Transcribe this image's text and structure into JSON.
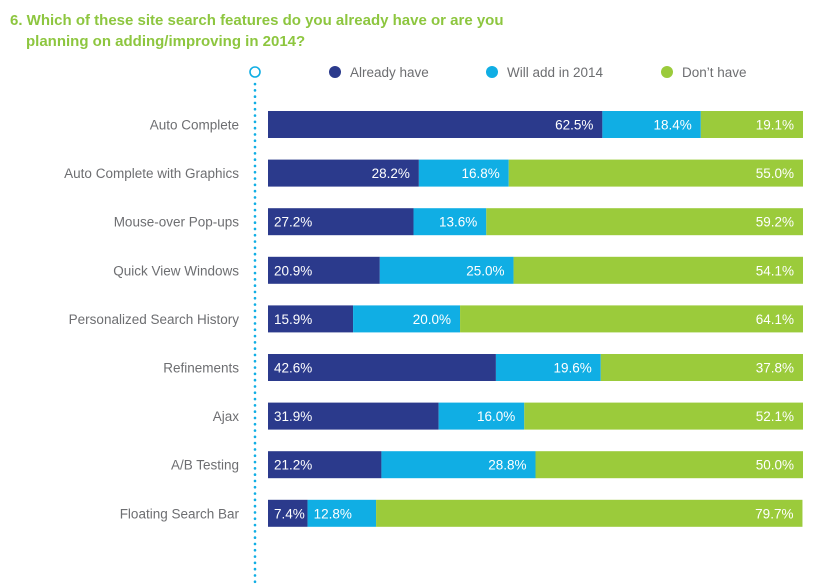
{
  "chart_data": {
    "type": "bar",
    "orientation": "horizontal",
    "stacked": true,
    "title_line1": "6. Which of these site search features do you already have or are you",
    "title_line2": "planning on adding/improving in 2014?",
    "categories": [
      "Auto Complete",
      "Auto Complete with Graphics",
      "Mouse-over Pop-ups",
      "Quick View Windows",
      "Personalized Search History",
      "Refinements",
      "Ajax",
      "A/B Testing",
      "Floating Search Bar"
    ],
    "series": [
      {
        "name": "Already have",
        "color": "#2b3a8c",
        "values": [
          62.5,
          28.2,
          27.2,
          20.9,
          15.9,
          42.6,
          31.9,
          21.2,
          7.4
        ],
        "labels": [
          "62.5%",
          "28.2%",
          "27.2%",
          "20.9%",
          "15.9%",
          "42.6%",
          "31.9%",
          "21.2%",
          "7.4%"
        ],
        "label_align": [
          "right",
          "right",
          "left",
          "left",
          "left",
          "left",
          "left",
          "left",
          "left"
        ]
      },
      {
        "name": "Will add in 2014",
        "color": "#10aee4",
        "values": [
          18.4,
          16.8,
          13.6,
          25.0,
          20.0,
          19.6,
          16.0,
          28.8,
          12.8
        ],
        "labels": [
          "18.4%",
          "16.8%",
          "13.6%",
          "25.0%",
          "20.0%",
          "19.6%",
          "16.0%",
          "28.8%",
          "12.8%"
        ],
        "label_align": [
          "right",
          "right",
          "right",
          "right",
          "right",
          "right",
          "right",
          "right",
          "left"
        ]
      },
      {
        "name": "Don’t have",
        "color": "#9bcb3b",
        "values": [
          19.1,
          55.0,
          59.2,
          54.1,
          64.1,
          37.8,
          52.1,
          50.0,
          79.7
        ],
        "labels": [
          "19.1%",
          "55.0%",
          "59.2%",
          "54.1%",
          "64.1%",
          "37.8%",
          "52.1%",
          "50.0%",
          "79.7%"
        ],
        "label_align": [
          "right",
          "right",
          "right",
          "right",
          "right",
          "right",
          "right",
          "right",
          "right"
        ]
      }
    ],
    "xlim": [
      0,
      100
    ],
    "legend_position": "top",
    "colors": {
      "title": "#8dc63f",
      "category_text": "#6d6e71",
      "legend_text": "#6d6e71",
      "axis_dots": "#10aee4"
    }
  }
}
